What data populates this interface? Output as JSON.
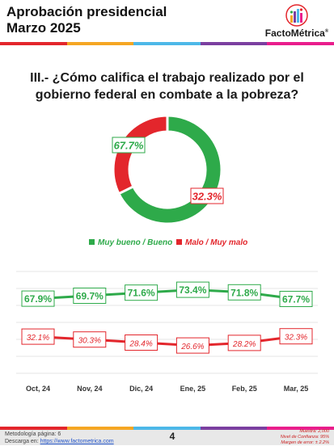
{
  "header": {
    "title_line1": "Aprobación presidencial",
    "title_line2": "Marzo 2025",
    "logo_name": "FactoMétrica",
    "logo_mark": "®"
  },
  "question": {
    "line1": "III.- ¿Cómo califica el trabajo realizado por el",
    "line2": "gobierno federal en combate a la pobreza?"
  },
  "colors": {
    "green": "#2eaa4a",
    "red": "#e3262c",
    "bar": [
      "#e3262c",
      "#f5a623",
      "#4db8e8",
      "#7b3fa0",
      "#e91e8c"
    ]
  },
  "chart_data": [
    {
      "type": "pie",
      "donut": true,
      "labels": [
        "Muy bueno / Bueno",
        "Malo / Muy malo"
      ],
      "values": [
        67.7,
        32.3
      ],
      "value_labels": [
        "67.7%",
        "32.3%"
      ],
      "colors": [
        "#2eaa4a",
        "#e3262c"
      ],
      "legend_placement": "bottom"
    },
    {
      "type": "line",
      "x": [
        "Oct, 24",
        "Nov, 24",
        "Dic, 24",
        "Ene, 25",
        "Feb, 25",
        "Mar, 25"
      ],
      "series": [
        {
          "name": "Muy bueno / Bueno",
          "color": "#2eaa4a",
          "values": [
            67.9,
            69.7,
            71.6,
            73.4,
            71.8,
            67.7
          ],
          "labels": [
            "67.9%",
            "69.7%",
            "71.6%",
            "73.4%",
            "71.8%",
            "67.7%"
          ]
        },
        {
          "name": "Malo / Muy malo",
          "color": "#e3262c",
          "values": [
            32.1,
            30.3,
            28.4,
            26.6,
            28.2,
            32.3
          ],
          "labels": [
            "32.1%",
            "30.3%",
            "28.4%",
            "26.6%",
            "28.2%",
            "32.3%"
          ]
        }
      ],
      "grid": true
    }
  ],
  "footer": {
    "metodologia": "Metodología página: 6",
    "descarga_label": "Descarga en: ",
    "descarga_url": "https://www.factometrica.com",
    "page_number": "4",
    "muestra": "Muestra: 2,000",
    "confianza": "Nivel de Confianza: 95%",
    "margen": "Margen de error: ± 2.2%"
  }
}
